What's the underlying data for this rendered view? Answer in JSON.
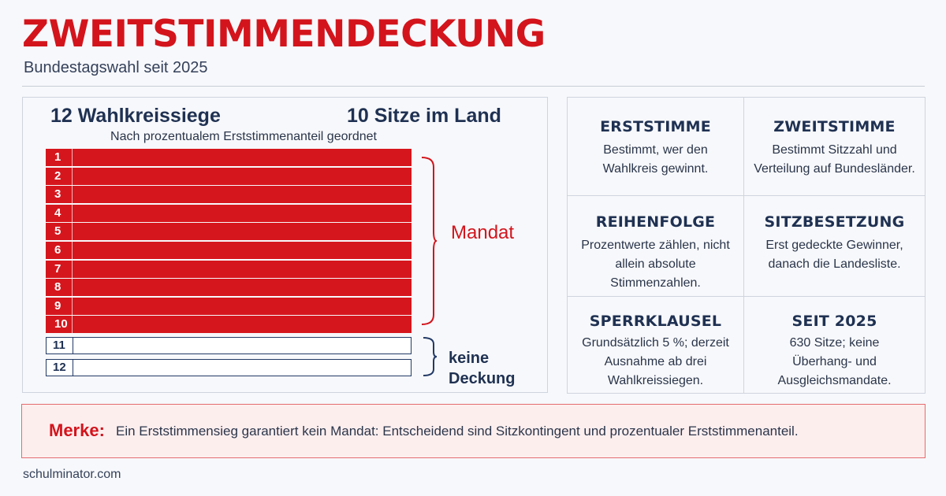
{
  "header": {
    "title": "ZWEITSTIMMENDECKUNG",
    "subtitle": "Bundestagswahl seit 2025"
  },
  "diagram": {
    "heading_left": "12 Wahlkreissiege",
    "heading_right": "10 Sitze im Land",
    "note": "Nach prozentualem Erststimmenanteil geordnet",
    "constituencies": [
      {
        "rank": "1",
        "status": "covered"
      },
      {
        "rank": "2",
        "status": "covered"
      },
      {
        "rank": "3",
        "status": "covered"
      },
      {
        "rank": "4",
        "status": "covered"
      },
      {
        "rank": "5",
        "status": "covered"
      },
      {
        "rank": "6",
        "status": "covered"
      },
      {
        "rank": "7",
        "status": "covered"
      },
      {
        "rank": "8",
        "status": "covered"
      },
      {
        "rank": "9",
        "status": "covered"
      },
      {
        "rank": "10",
        "status": "covered"
      },
      {
        "rank": "11",
        "status": "uncovered"
      },
      {
        "rank": "12",
        "status": "uncovered"
      }
    ],
    "label_covered": "Mandat",
    "label_uncovered": "keine Deckung"
  },
  "info_cards": [
    {
      "title": "ERSTSTIMME",
      "text": [
        "Bestimmt, wer den",
        "Wahlkreis gewinnt."
      ]
    },
    {
      "title": "ZWEITSTIMME",
      "text": [
        "Bestimmt Sitzzahl und",
        "Verteilung auf Bundesländer."
      ]
    },
    {
      "title": "REIHENFOLGE",
      "text": [
        "Prozentwerte zählen, nicht",
        "allein absolute",
        "Stimmenzahlen."
      ]
    },
    {
      "title": "SITZBESETZUNG",
      "text": [
        "Erst gedeckte Gewinner,",
        "danach die Landesliste."
      ]
    },
    {
      "title": "SPERRKLAUSEL",
      "text": [
        "Grundsätzlich 5 %; derzeit",
        "Ausnahme ab drei",
        "Wahlkreissiegen."
      ]
    },
    {
      "title": "SEIT 2025",
      "text": [
        "630 Sitze; keine",
        "Überhang- und",
        "Ausgleichsmandate."
      ]
    }
  ],
  "merke": {
    "label": "Merke:",
    "text": "Ein Erststimmensieg garantiert kein Mandat: Entscheidend sind Sitzkontingent und prozentualer Erststimmenanteil."
  },
  "footer": {
    "source": "schulminator.com"
  },
  "colors": {
    "accent_red": "#d3141c",
    "navy": "#1f3152"
  }
}
